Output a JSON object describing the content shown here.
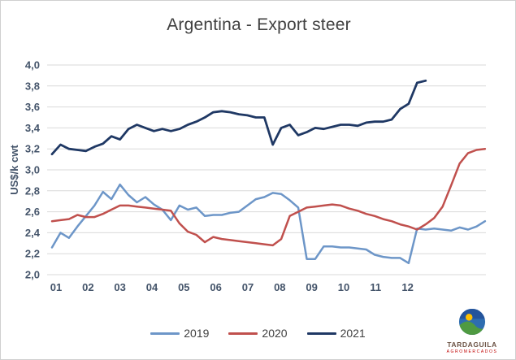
{
  "chart_data": {
    "type": "line",
    "title": "Argentina - Export steer",
    "ylabel": "US$/k cwt",
    "ylim": [
      2.0,
      4.0
    ],
    "y_step": 0.2,
    "y_tick_labels": [
      "4,0",
      "3,8",
      "3,6",
      "3,4",
      "3,2",
      "3,0",
      "2,8",
      "2,6",
      "2,4",
      "2,2",
      "2,0"
    ],
    "x_tick_labels": [
      "01",
      "02",
      "03",
      "04",
      "05",
      "06",
      "07",
      "08",
      "09",
      "10",
      "11",
      "12"
    ],
    "x_unit": "weeks (labelled by month 01-12)",
    "grid": "horizontal",
    "legend_position": "bottom",
    "colors": {
      "grid": "#d9d9d9",
      "axis_text": "#44546A",
      "title_text": "#404040"
    },
    "series": [
      {
        "name": "2019",
        "color": "#6d96c8",
        "values": [
          2.26,
          2.4,
          2.35,
          2.46,
          2.56,
          2.66,
          2.79,
          2.72,
          2.86,
          2.76,
          2.69,
          2.74,
          2.67,
          2.62,
          2.52,
          2.66,
          2.62,
          2.64,
          2.56,
          2.57,
          2.57,
          2.59,
          2.6,
          2.66,
          2.72,
          2.74,
          2.78,
          2.77,
          2.71,
          2.64,
          2.15,
          2.15,
          2.27,
          2.27,
          2.26,
          2.26,
          2.25,
          2.24,
          2.19,
          2.17,
          2.16,
          2.16,
          2.11,
          2.44,
          2.43,
          2.44,
          2.43,
          2.42,
          2.45,
          2.43,
          2.46,
          2.51
        ]
      },
      {
        "name": "2020",
        "color": "#c0504d",
        "values": [
          2.51,
          2.52,
          2.53,
          2.57,
          2.55,
          2.55,
          2.58,
          2.62,
          2.66,
          2.66,
          2.65,
          2.64,
          2.63,
          2.62,
          2.61,
          2.49,
          2.41,
          2.38,
          2.31,
          2.36,
          2.34,
          2.33,
          2.32,
          2.31,
          2.3,
          2.29,
          2.28,
          2.34,
          2.56,
          2.6,
          2.64,
          2.65,
          2.66,
          2.67,
          2.66,
          2.63,
          2.61,
          2.58,
          2.56,
          2.53,
          2.51,
          2.48,
          2.46,
          2.43,
          2.48,
          2.54,
          2.65,
          2.85,
          3.06,
          3.16,
          3.19,
          3.2
        ]
      },
      {
        "name": "2021",
        "color": "#1f3864",
        "values": [
          3.15,
          3.24,
          3.2,
          3.19,
          3.18,
          3.22,
          3.25,
          3.32,
          3.29,
          3.39,
          3.43,
          3.4,
          3.37,
          3.39,
          3.37,
          3.39,
          3.43,
          3.46,
          3.5,
          3.55,
          3.56,
          3.55,
          3.53,
          3.52,
          3.5,
          3.5,
          3.24,
          3.4,
          3.43,
          3.33,
          3.36,
          3.4,
          3.39,
          3.41,
          3.43,
          3.43,
          3.42,
          3.45,
          3.46,
          3.46,
          3.48,
          3.58,
          3.63,
          3.83,
          3.85
        ]
      }
    ]
  },
  "logo": {
    "brand": "TARDAGUILA",
    "subtitle": "AGROMERCADOS"
  }
}
